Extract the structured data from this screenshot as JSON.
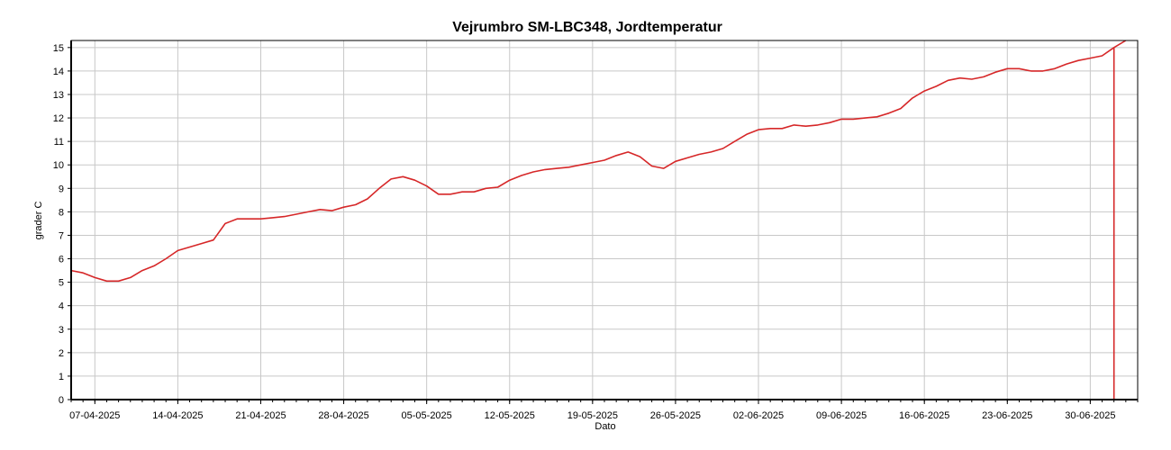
{
  "chart_data": {
    "type": "line",
    "title": "Vejrumbro SM-LBC348, Jordtemperatur",
    "xlabel": "Dato",
    "ylabel": "grader C",
    "xlim": [
      "2025-04-05",
      "2025-07-04"
    ],
    "ylim": [
      0,
      15.3
    ],
    "yticks": [
      0,
      1,
      2,
      3,
      4,
      5,
      6,
      7,
      8,
      9,
      10,
      11,
      12,
      13,
      14,
      15
    ],
    "xticks": [
      "07-04-2025",
      "14-04-2025",
      "21-04-2025",
      "28-04-2025",
      "05-05-2025",
      "12-05-2025",
      "19-05-2025",
      "26-05-2025",
      "02-06-2025",
      "09-06-2025",
      "16-06-2025",
      "23-06-2025",
      "30-06-2025"
    ],
    "grid": true,
    "legend": "none",
    "colors": {
      "line": "#d62728",
      "grid": "#c8c8c8",
      "axis": "#000000"
    },
    "series": [
      {
        "x": [
          "2025-04-05",
          "2025-04-06",
          "2025-04-07",
          "2025-04-08",
          "2025-04-09",
          "2025-04-10",
          "2025-04-11",
          "2025-04-12",
          "2025-04-13",
          "2025-04-14",
          "2025-04-15",
          "2025-04-16",
          "2025-04-17",
          "2025-04-18",
          "2025-04-19",
          "2025-04-20",
          "2025-04-21",
          "2025-04-22",
          "2025-04-23",
          "2025-04-24",
          "2025-04-25",
          "2025-04-26",
          "2025-04-27",
          "2025-04-28",
          "2025-04-29",
          "2025-04-30",
          "2025-05-01",
          "2025-05-02",
          "2025-05-03",
          "2025-05-04",
          "2025-05-05",
          "2025-05-06",
          "2025-05-07",
          "2025-05-08",
          "2025-05-09",
          "2025-05-10",
          "2025-05-11",
          "2025-05-12",
          "2025-05-13",
          "2025-05-14",
          "2025-05-15",
          "2025-05-16",
          "2025-05-17",
          "2025-05-18",
          "2025-05-19",
          "2025-05-20",
          "2025-05-21",
          "2025-05-22",
          "2025-05-23",
          "2025-05-24",
          "2025-05-25",
          "2025-05-26",
          "2025-05-27",
          "2025-05-28",
          "2025-05-29",
          "2025-05-30",
          "2025-05-31",
          "2025-06-01",
          "2025-06-02",
          "2025-06-03",
          "2025-06-04",
          "2025-06-05",
          "2025-06-06",
          "2025-06-07",
          "2025-06-08",
          "2025-06-09",
          "2025-06-10",
          "2025-06-11",
          "2025-06-12",
          "2025-06-13",
          "2025-06-14",
          "2025-06-15",
          "2025-06-16",
          "2025-06-17",
          "2025-06-18",
          "2025-06-19",
          "2025-06-20",
          "2025-06-21",
          "2025-06-22",
          "2025-06-23",
          "2025-06-24",
          "2025-06-25",
          "2025-06-26",
          "2025-06-27",
          "2025-06-28",
          "2025-06-29",
          "2025-06-30",
          "2025-07-01",
          "2025-07-02",
          "2025-07-03"
        ],
        "y": [
          5.5,
          5.4,
          5.2,
          5.05,
          5.05,
          5.2,
          5.5,
          5.7,
          6.0,
          6.35,
          6.5,
          6.65,
          6.8,
          7.5,
          7.7,
          7.7,
          7.7,
          7.75,
          7.8,
          7.9,
          8.0,
          8.1,
          8.05,
          8.2,
          8.3,
          8.55,
          9.0,
          9.4,
          9.5,
          9.35,
          9.1,
          8.75,
          8.75,
          8.85,
          8.85,
          9.0,
          9.05,
          9.35,
          9.55,
          9.7,
          9.8,
          9.85,
          9.9,
          10.0,
          10.1,
          10.2,
          10.4,
          10.55,
          10.35,
          9.95,
          9.85,
          10.15,
          10.3,
          10.45,
          10.55,
          10.7,
          11.0,
          11.3,
          11.5,
          11.55,
          11.55,
          11.7,
          11.65,
          11.7,
          11.8,
          11.95,
          11.95,
          12.0,
          12.05,
          12.2,
          12.4,
          12.85,
          13.15,
          13.35,
          13.6,
          13.7,
          13.65,
          13.75,
          13.95,
          14.1,
          14.1,
          14.0,
          14.0,
          14.1,
          14.3,
          14.45,
          14.55,
          14.65,
          15.0,
          15.3
        ]
      }
    ],
    "vertical_marker": {
      "x": "2025-07-02",
      "y_from": 0,
      "y_to": 15.0
    }
  }
}
